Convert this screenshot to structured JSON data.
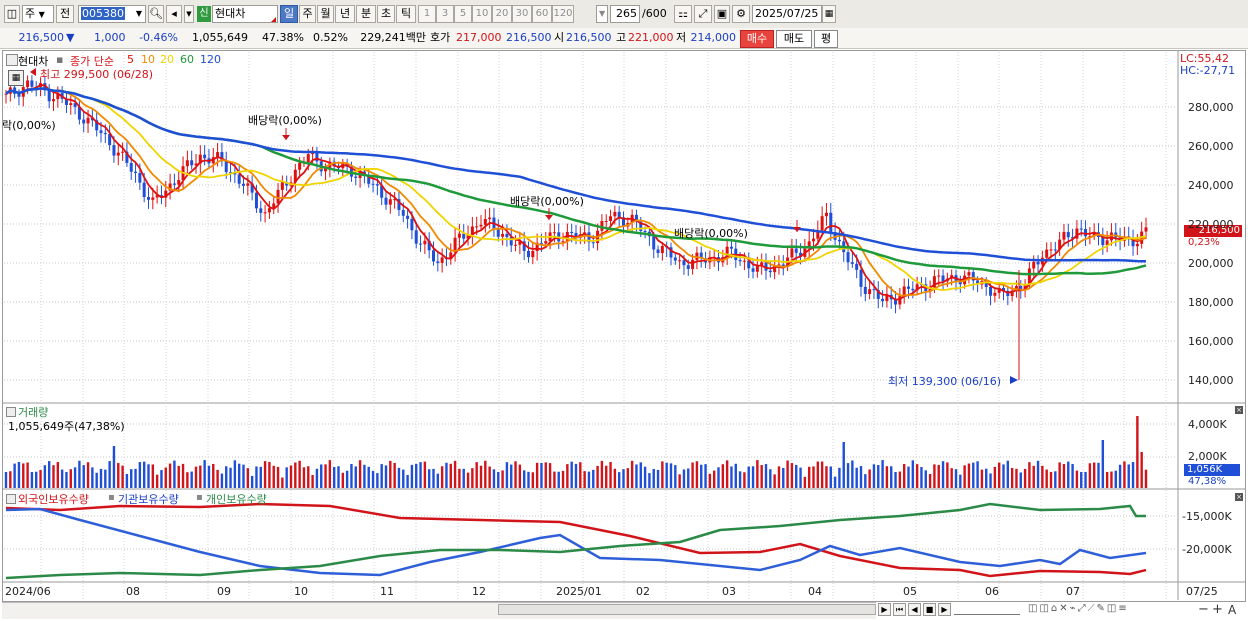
{
  "toolbar": {
    "market": "주",
    "period_prefix": "전",
    "code": "005380",
    "badge": "신",
    "stock_name": "현대차",
    "periods": [
      "일",
      "주",
      "월",
      "년",
      "분",
      "초",
      "틱"
    ],
    "intervals": [
      "1",
      "3",
      "5",
      "10",
      "20",
      "30",
      "60",
      "120"
    ],
    "count": "265",
    "count_max": "/600",
    "date": "2025/07/25"
  },
  "quote": {
    "price": "216,500",
    "price_arrow": "▼",
    "change": "1,000",
    "change_pct": "-0.46%",
    "volume": "1,055,649",
    "volume_ratio": "47.38%",
    "turnover": "0.52%",
    "amount": "229,241백만",
    "ask_label": "호가",
    "ask": "217,000",
    "bid": "216,500",
    "open_label": "시",
    "open": "216,500",
    "high_label": "고",
    "high": "221,000",
    "low_label": "저",
    "low": "214,000",
    "buy_button": "매수",
    "sell_button": "매도",
    "eval_button": "평"
  },
  "price_panel": {
    "legend_name": "현대차",
    "legend_type": "종가 단순",
    "ma_labels": [
      {
        "label": "5",
        "color": "#e01010"
      },
      {
        "label": "10",
        "color": "#f08a00"
      },
      {
        "label": "20",
        "color": "#f0d400"
      },
      {
        "label": "60",
        "color": "#1f9a3a"
      },
      {
        "label": "120",
        "color": "#1f4fd6"
      }
    ],
    "high_marker": "최고 299,500 (06/28)",
    "low_marker": "최저 139,300 (06/16)",
    "dividend_label_left": "락(0,00%)",
    "dividends": [
      "배당락(0,00%)",
      "배당락(0,00%)",
      "배당락(0,00%)"
    ],
    "lc": "LC:55,42",
    "hc": "HC:-27,71",
    "y_ticks": [
      "280,000",
      "260,000",
      "240,000",
      "220,000",
      "200,000",
      "180,000",
      "160,000",
      "140,000"
    ],
    "current_price_tag": "216,500",
    "current_change_tag": "0,23%"
  },
  "volume_panel": {
    "title": "거래량",
    "value": "1,055,649주(47,38%)",
    "y_ticks": [
      "4,000K",
      "2,000K"
    ],
    "current_tag": "1,056K",
    "current_pct": "47,38%"
  },
  "holdings_panel": {
    "legend": [
      {
        "label": "외국인보유수량",
        "color": "#d1141a"
      },
      {
        "label": "기관보유수량",
        "color": "#1a3fc4"
      },
      {
        "label": "개인보유수량",
        "color": "#2b8a47"
      }
    ],
    "y_ticks": [
      "-15,000K",
      "-20,000K"
    ]
  },
  "x_axis": [
    "2024/06",
    "08",
    "09",
    "10",
    "11",
    "12",
    "2025/01",
    "02",
    "03",
    "04",
    "05",
    "06",
    "07"
  ],
  "x_axis_right": "07/25"
}
